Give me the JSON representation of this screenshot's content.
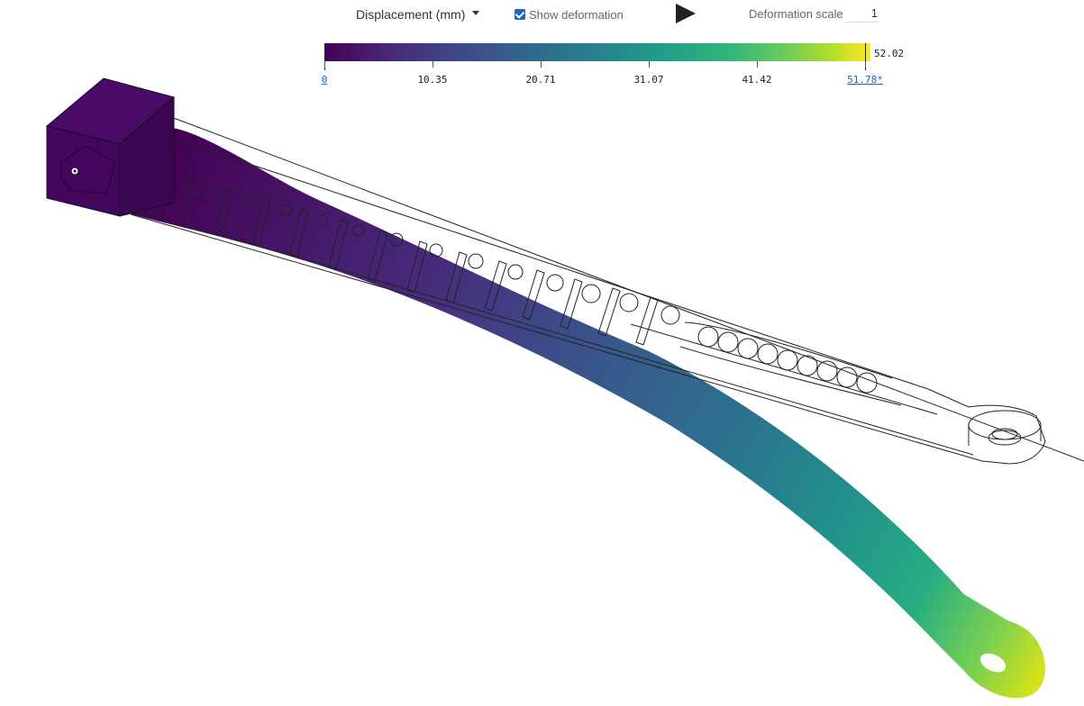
{
  "toolbar": {
    "result_type": "Displacement (mm)",
    "show_deformation_label": "Show deformation",
    "show_deformation_checked": true,
    "deformation_scale_label": "Deformation scale",
    "deformation_scale_value": "1"
  },
  "legend": {
    "max_value": "52.02",
    "ticks": [
      "0",
      "10.35",
      "20.71",
      "31.07",
      "41.42",
      "51.78*"
    ],
    "colormap": [
      "#440154",
      "#3e4989",
      "#26828e",
      "#35b779",
      "#fde725"
    ]
  },
  "icons": {
    "play": "play-icon",
    "caret": "chevron-down-icon",
    "checkbox": "checkbox-checked-icon"
  }
}
